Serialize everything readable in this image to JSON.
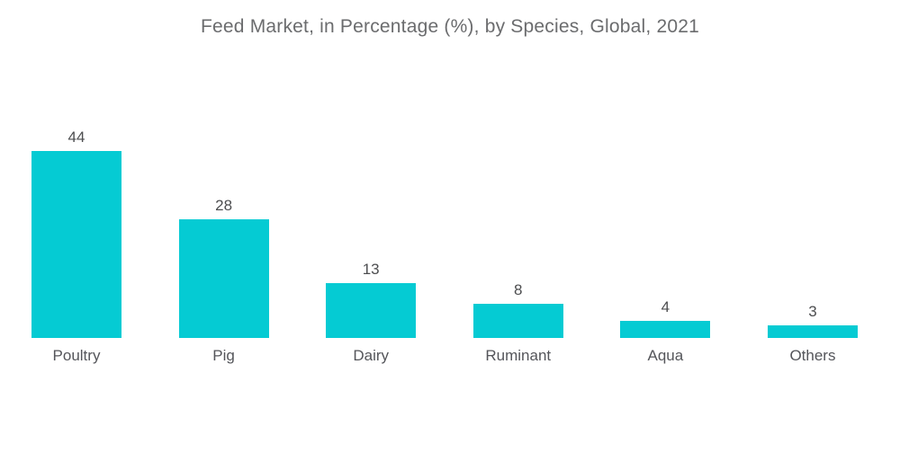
{
  "chart_data": {
    "type": "bar",
    "title": "Feed Market, in Percentage (%), by Species, Global, 2021",
    "categories": [
      "Poultry",
      "Pig",
      "Dairy",
      "Ruminant",
      "Aqua",
      "Others"
    ],
    "values": [
      44,
      28,
      13,
      8,
      4,
      3
    ],
    "unit": "%",
    "xlabel": "",
    "ylabel": "",
    "ylim": [
      0,
      44
    ],
    "grid": false,
    "legend": false,
    "axes_visible": false,
    "data_labels_position": "above-bars",
    "colors": {
      "bar": "#05cbd3",
      "title_text": "#6b6c6e",
      "value_label_text": "#4d4e50",
      "category_label_text": "#54555a",
      "background": "#ffffff"
    }
  }
}
